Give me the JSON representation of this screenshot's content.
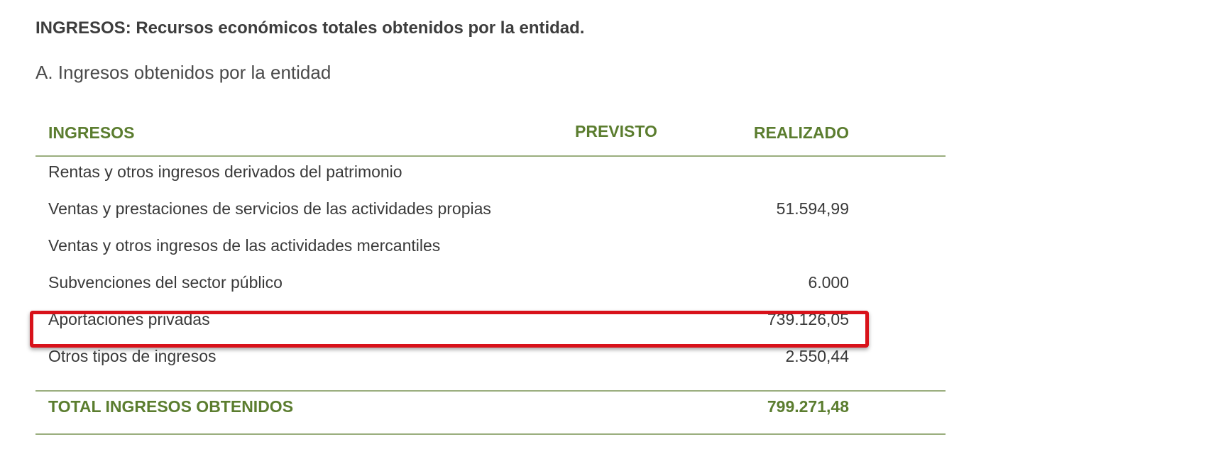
{
  "document": {
    "title": "INGRESOS: Recursos económicos totales obtenidos por la entidad.",
    "section_title": "A. Ingresos obtenidos por la entidad"
  },
  "table": {
    "headers": {
      "ingresos": "INGRESOS",
      "previsto": "PREVISTO",
      "realizado": "REALIZADO"
    },
    "rows": [
      {
        "label": "Rentas y otros ingresos derivados del patrimonio",
        "previsto": "",
        "realizado": ""
      },
      {
        "label": "Ventas y prestaciones de servicios de las actividades propias",
        "previsto": "",
        "realizado": "51.594,99"
      },
      {
        "label": "Ventas y otros ingresos de las actividades mercantiles",
        "previsto": "",
        "realizado": ""
      },
      {
        "label": "Subvenciones del sector público",
        "previsto": "",
        "realizado": "6.000"
      },
      {
        "label": "Aportaciones privadas",
        "previsto": "",
        "realizado": "739.126,05",
        "highlighted": true
      },
      {
        "label": "Otros tipos de  ingresos",
        "previsto": "",
        "realizado": "2.550,44"
      }
    ],
    "total": {
      "label": "TOTAL INGRESOS OBTENIDOS",
      "previsto": "",
      "realizado": "799.271,48"
    }
  },
  "colors": {
    "header_green": "#5b7d2f",
    "rule_green": "#9aae7e",
    "highlight_red": "#d8121a",
    "text": "#3a3a3a"
  }
}
